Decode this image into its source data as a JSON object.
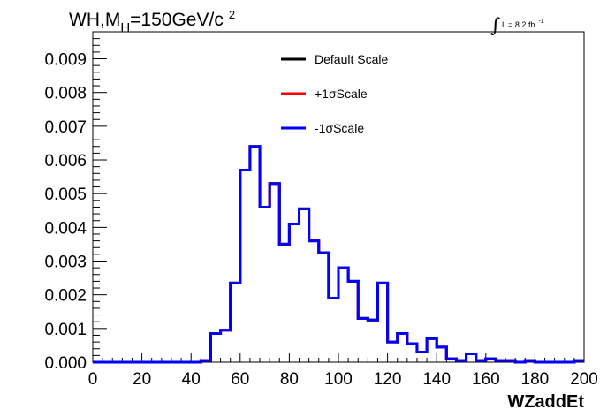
{
  "chart_data": {
    "type": "line",
    "title_main": "WH,M",
    "title_sub": "H",
    "title_rest": "=150GeV/c",
    "title_sup": "2",
    "lumi_integral": "∫",
    "lumi_text": "L = 8.2 fb",
    "lumi_sup": "-1",
    "xlabel": "WZaddEt",
    "ylabel": "",
    "xlim": [
      0,
      200
    ],
    "ylim": [
      0,
      0.0098
    ],
    "x_ticks": [
      "0",
      "20",
      "40",
      "60",
      "80",
      "100",
      "120",
      "140",
      "160",
      "180",
      "200"
    ],
    "y_ticks": [
      "0.000",
      "0.001",
      "0.002",
      "0.003",
      "0.004",
      "0.005",
      "0.006",
      "0.007",
      "0.008",
      "0.009"
    ],
    "legend_position": "top-center",
    "bin_width": 4,
    "bin_edges_start": 0,
    "series": [
      {
        "name": "Default Scale",
        "color": "#000000",
        "values": [
          0,
          0,
          0,
          0,
          0,
          0,
          0,
          0,
          0,
          0,
          0,
          5e-05,
          0.00085,
          0.00095,
          0.00235,
          0.0057,
          0.0064,
          0.0046,
          0.0053,
          0.0035,
          0.0041,
          0.00455,
          0.0036,
          0.00325,
          0.0019,
          0.0028,
          0.0024,
          0.0013,
          0.00125,
          0.00235,
          0.0006,
          0.00085,
          0.00055,
          0.0003,
          0.0007,
          0.00045,
          0.0001,
          5e-05,
          0.00025,
          5e-05,
          0.0001,
          5e-05,
          5e-05,
          0,
          5e-05,
          0,
          0,
          0,
          0,
          5e-05
        ]
      },
      {
        "name": "+1σScale",
        "color": "#ff0000",
        "values": [
          0,
          0,
          0,
          0,
          0,
          0,
          0,
          0,
          0,
          0,
          0,
          5e-05,
          0.00085,
          0.00095,
          0.00235,
          0.0057,
          0.0064,
          0.0046,
          0.0053,
          0.0035,
          0.0041,
          0.00455,
          0.0036,
          0.00325,
          0.0019,
          0.0028,
          0.0024,
          0.0013,
          0.00125,
          0.00235,
          0.0006,
          0.00085,
          0.00055,
          0.0003,
          0.0007,
          0.00045,
          0.0001,
          5e-05,
          0.00025,
          5e-05,
          0.0001,
          5e-05,
          5e-05,
          0,
          5e-05,
          0,
          0,
          0,
          0,
          5e-05
        ]
      },
      {
        "name": "-1σScale",
        "color": "#0000ff",
        "values": [
          0,
          0,
          0,
          0,
          0,
          0,
          0,
          0,
          0,
          0,
          0,
          5e-05,
          0.00085,
          0.00095,
          0.00235,
          0.0057,
          0.0064,
          0.0046,
          0.0053,
          0.0035,
          0.0041,
          0.00455,
          0.0036,
          0.00325,
          0.0019,
          0.0028,
          0.0024,
          0.0013,
          0.00125,
          0.00235,
          0.0006,
          0.00085,
          0.00055,
          0.0003,
          0.0007,
          0.00045,
          0.0001,
          5e-05,
          0.00025,
          5e-05,
          0.0001,
          5e-05,
          5e-05,
          0,
          5e-05,
          0,
          0,
          0,
          0,
          5e-05
        ]
      }
    ]
  }
}
